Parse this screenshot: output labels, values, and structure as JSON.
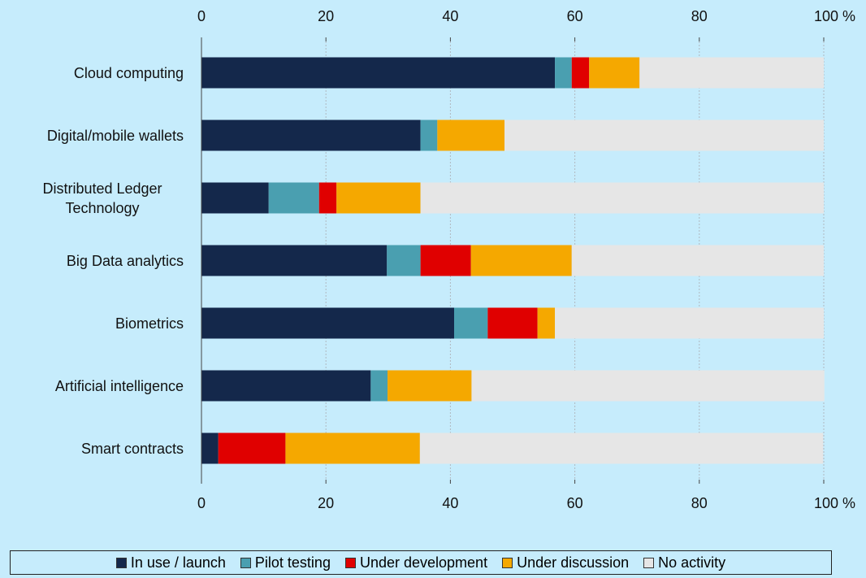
{
  "chart_data": {
    "type": "stacked-bar-horizontal",
    "categories": [
      "Cloud computing",
      "Digital/mobile wallets",
      "Distributed Ledger Technology",
      "Big Data analytics",
      "Biometrics",
      "Artificial intelligence",
      "Smart contracts"
    ],
    "series": [
      {
        "name": "In use / launch",
        "color": "#14284b",
        "values": [
          56.8,
          35.2,
          10.8,
          29.8,
          40.6,
          27.2,
          2.7
        ]
      },
      {
        "name": "Pilot testing",
        "color": "#4a9fb0",
        "values": [
          2.7,
          2.7,
          8.1,
          5.4,
          5.4,
          2.7,
          0
        ]
      },
      {
        "name": "Under development",
        "color": "#e00000",
        "values": [
          2.8,
          0,
          2.8,
          8.1,
          8.0,
          0,
          10.8
        ]
      },
      {
        "name": "Under discussion",
        "color": "#f5a800",
        "values": [
          8.1,
          10.8,
          13.5,
          16.2,
          2.8,
          13.5,
          21.6
        ]
      },
      {
        "name": "No activity",
        "color": "#e6e6e6",
        "values": [
          29.6,
          51.3,
          64.8,
          40.5,
          43.2,
          56.7,
          64.8
        ]
      }
    ],
    "xlim": [
      0,
      100
    ],
    "xticks": [
      0,
      20,
      40,
      60,
      80,
      {
        "value": 100,
        "label": "100 %"
      }
    ],
    "grid": true,
    "legend": "bottom"
  }
}
